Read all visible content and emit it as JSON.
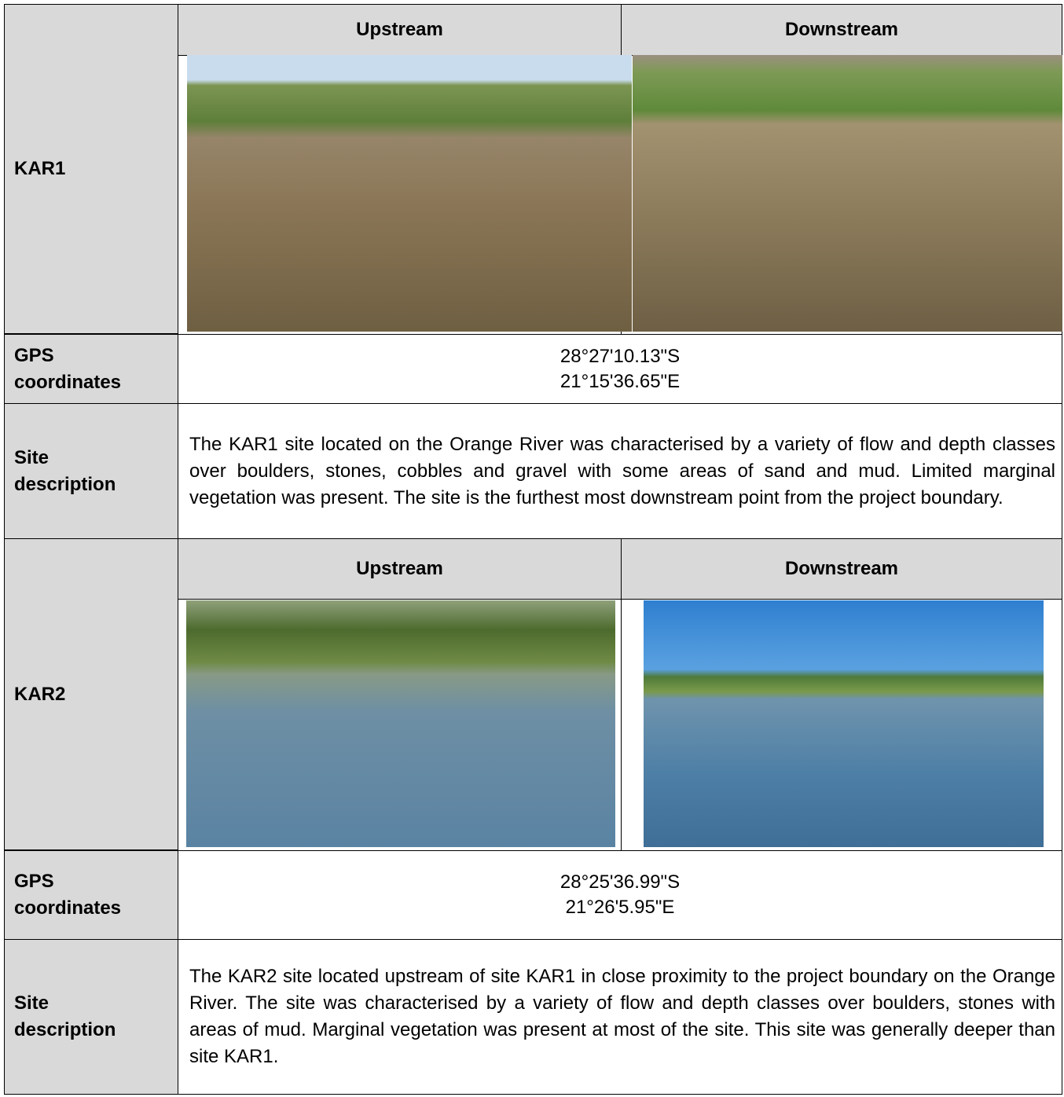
{
  "sites": [
    {
      "label": "KAR1",
      "upstream_header": "Upstream",
      "downstream_header": "Downstream",
      "gps_label": "GPS coordinates",
      "gps": [
        "28°27'10.13\"S",
        "21°15'36.65\"E"
      ],
      "description_label": "Site description",
      "description": "The KAR1 site located on the Orange River was characterised by a variety of flow and depth classes over boulders, stones, cobbles and gravel with some areas of sand and mud. Limited marginal vegetation was present. The site is the furthest most downstream point from the project boundary."
    },
    {
      "label": "KAR2",
      "upstream_header": "Upstream",
      "downstream_header": "Downstream",
      "gps_label": "GPS coordinates",
      "gps": [
        "28°25'36.99\"S",
        "21°26'5.95\"E"
      ],
      "description_label": "Site description",
      "description": "The KAR2 site located upstream of site KAR1 in close proximity to the project boundary on the Orange River. The site was characterised by a variety of flow and depth classes over boulders, stones with areas of mud. Marginal vegetation was present at most of the site. This site was generally deeper than site KAR1."
    }
  ]
}
